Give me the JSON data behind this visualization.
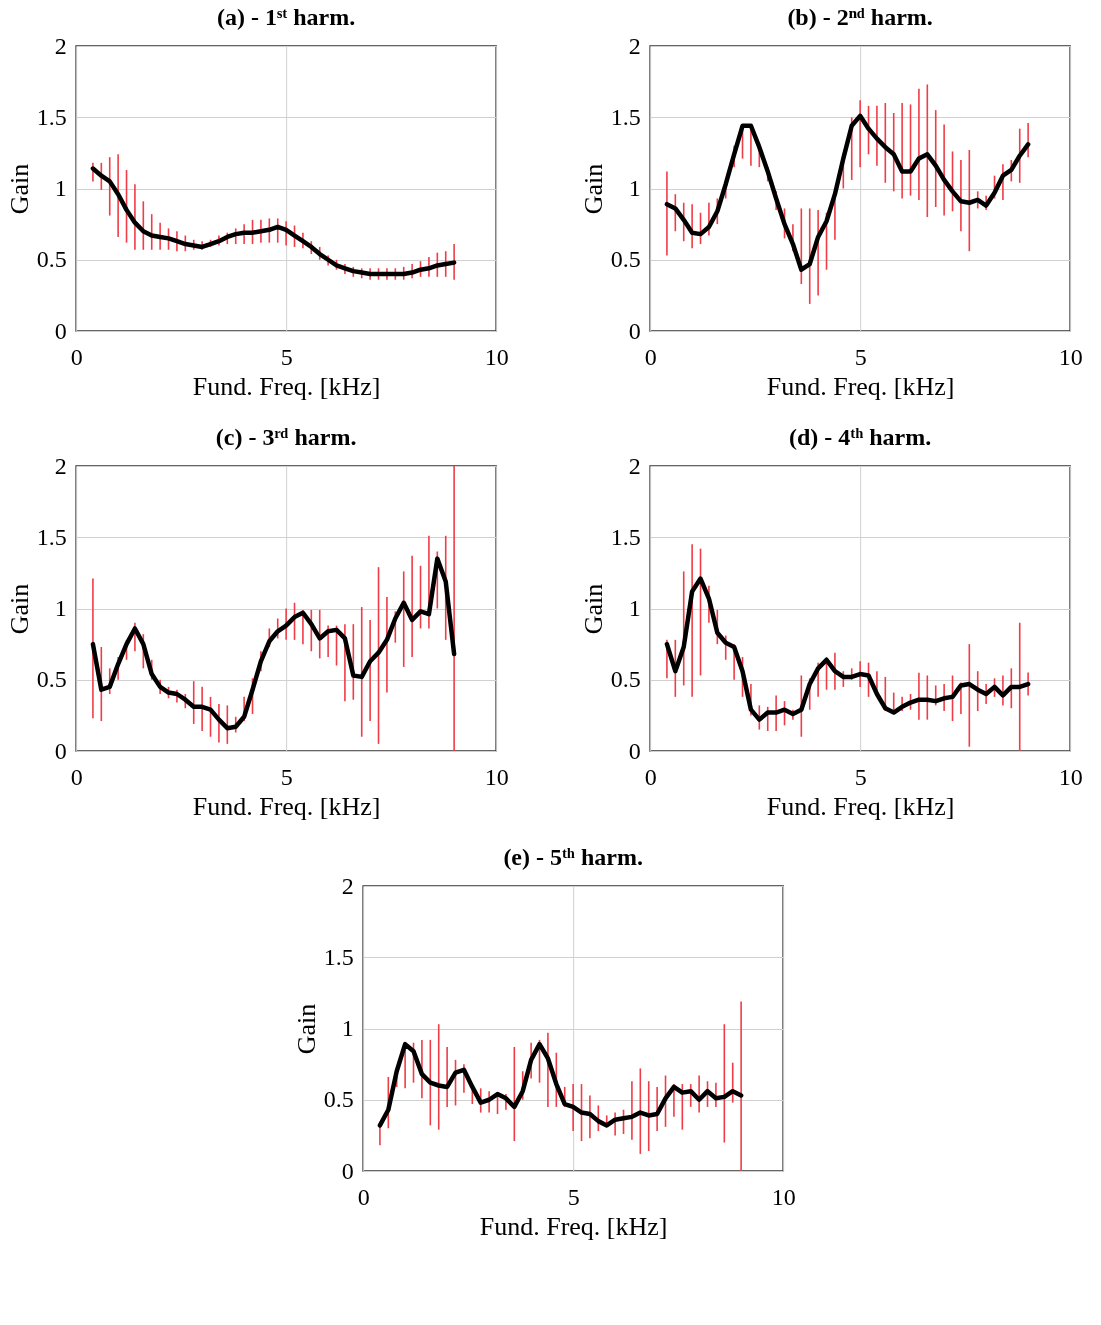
{
  "chart_data": [
    {
      "type": "line",
      "title": "(a) - 1ˢᵗ harm.",
      "xlabel": "Fund. Freq. [kHz]",
      "ylabel": "Gain",
      "color": "#000000",
      "grid": true,
      "xlim": [
        0,
        10
      ],
      "ylim": [
        0,
        2
      ],
      "xticks": [
        0,
        5,
        10
      ],
      "yticks": [
        0,
        0.5,
        1,
        1.5,
        2
      ],
      "x": [
        0.4,
        0.6,
        0.8,
        1.0,
        1.2,
        1.4,
        1.6,
        1.8,
        2.0,
        2.2,
        2.4,
        2.6,
        2.8,
        3.0,
        3.2,
        3.4,
        3.6,
        3.8,
        4.0,
        4.2,
        4.4,
        4.6,
        4.8,
        5.0,
        5.2,
        5.4,
        5.6,
        5.8,
        6.0,
        6.2,
        6.4,
        6.6,
        6.8,
        7.0,
        7.2,
        7.4,
        7.6,
        7.8,
        8.0,
        8.2,
        8.4,
        8.6,
        8.8,
        9.0
      ],
      "values": [
        1.14,
        1.09,
        1.05,
        0.96,
        0.85,
        0.76,
        0.7,
        0.67,
        0.66,
        0.65,
        0.63,
        0.61,
        0.6,
        0.59,
        0.61,
        0.63,
        0.66,
        0.68,
        0.69,
        0.69,
        0.7,
        0.71,
        0.73,
        0.71,
        0.67,
        0.63,
        0.59,
        0.54,
        0.5,
        0.46,
        0.44,
        0.42,
        0.41,
        0.4,
        0.4,
        0.4,
        0.4,
        0.4,
        0.41,
        0.43,
        0.44,
        0.46,
        0.47,
        0.48
      ],
      "errors": [
        [
          1.05,
          1.18
        ],
        [
          0.99,
          1.18
        ],
        [
          0.81,
          1.22
        ],
        [
          0.66,
          1.24
        ],
        [
          0.62,
          1.13
        ],
        [
          0.57,
          1.03
        ],
        [
          0.57,
          0.91
        ],
        [
          0.57,
          0.82
        ],
        [
          0.57,
          0.76
        ],
        [
          0.57,
          0.72
        ],
        [
          0.56,
          0.7
        ],
        [
          0.56,
          0.67
        ],
        [
          0.57,
          0.64
        ],
        [
          0.57,
          0.63
        ],
        [
          0.59,
          0.64
        ],
        [
          0.6,
          0.67
        ],
        [
          0.61,
          0.69
        ],
        [
          0.61,
          0.72
        ],
        [
          0.61,
          0.75
        ],
        [
          0.61,
          0.78
        ],
        [
          0.62,
          0.78
        ],
        [
          0.62,
          0.79
        ],
        [
          0.62,
          0.79
        ],
        [
          0.6,
          0.77
        ],
        [
          0.59,
          0.74
        ],
        [
          0.58,
          0.69
        ],
        [
          0.54,
          0.63
        ],
        [
          0.5,
          0.59
        ],
        [
          0.46,
          0.53
        ],
        [
          0.43,
          0.5
        ],
        [
          0.4,
          0.47
        ],
        [
          0.38,
          0.45
        ],
        [
          0.37,
          0.44
        ],
        [
          0.36,
          0.44
        ],
        [
          0.36,
          0.44
        ],
        [
          0.36,
          0.44
        ],
        [
          0.36,
          0.44
        ],
        [
          0.36,
          0.45
        ],
        [
          0.37,
          0.47
        ],
        [
          0.38,
          0.49
        ],
        [
          0.38,
          0.52
        ],
        [
          0.38,
          0.55
        ],
        [
          0.38,
          0.56
        ],
        [
          0.36,
          0.61
        ]
      ]
    },
    {
      "type": "line",
      "title": "(b) - 2ⁿᵈ harm.",
      "xlabel": "Fund. Freq. [kHz]",
      "ylabel": "Gain",
      "color": "#000000",
      "grid": true,
      "xlim": [
        0,
        10
      ],
      "ylim": [
        0,
        2
      ],
      "xticks": [
        0,
        5,
        10
      ],
      "yticks": [
        0,
        0.5,
        1,
        1.5,
        2
      ],
      "x": [
        0.4,
        0.6,
        0.8,
        1.0,
        1.2,
        1.4,
        1.6,
        1.8,
        2.0,
        2.2,
        2.4,
        2.6,
        2.8,
        3.0,
        3.2,
        3.4,
        3.6,
        3.8,
        4.0,
        4.2,
        4.4,
        4.6,
        4.8,
        5.0,
        5.2,
        5.4,
        5.6,
        5.8,
        6.0,
        6.2,
        6.4,
        6.6,
        6.8,
        7.0,
        7.2,
        7.4,
        7.6,
        7.8,
        8.0,
        8.2,
        8.4,
        8.6,
        8.8,
        9.0
      ],
      "values": [
        0.89,
        0.86,
        0.78,
        0.69,
        0.68,
        0.73,
        0.84,
        1.03,
        1.24,
        1.44,
        1.44,
        1.29,
        1.12,
        0.93,
        0.75,
        0.61,
        0.43,
        0.47,
        0.66,
        0.77,
        0.96,
        1.21,
        1.44,
        1.51,
        1.42,
        1.35,
        1.29,
        1.24,
        1.12,
        1.12,
        1.21,
        1.24,
        1.16,
        1.06,
        0.98,
        0.91,
        0.9,
        0.92,
        0.88,
        0.97,
        1.09,
        1.13,
        1.23,
        1.31
      ],
      "errors": [
        [
          0.53,
          1.12
        ],
        [
          0.7,
          0.96
        ],
        [
          0.63,
          0.9
        ],
        [
          0.58,
          0.89
        ],
        [
          0.61,
          0.83
        ],
        [
          0.67,
          0.9
        ],
        [
          0.75,
          0.93
        ],
        [
          0.93,
          1.05
        ],
        [
          1.15,
          1.3
        ],
        [
          1.21,
          1.45
        ],
        [
          1.16,
          1.45
        ],
        [
          1.15,
          1.32
        ],
        [
          1.05,
          1.15
        ],
        [
          0.85,
          0.98
        ],
        [
          0.65,
          0.86
        ],
        [
          0.56,
          0.75
        ],
        [
          0.33,
          0.86
        ],
        [
          0.19,
          0.86
        ],
        [
          0.25,
          0.85
        ],
        [
          0.43,
          0.83
        ],
        [
          0.64,
          0.97
        ],
        [
          1.0,
          1.25
        ],
        [
          1.06,
          1.5
        ],
        [
          1.15,
          1.62
        ],
        [
          1.24,
          1.58
        ],
        [
          1.16,
          1.58
        ],
        [
          1.04,
          1.6
        ],
        [
          0.98,
          1.53
        ],
        [
          0.93,
          1.6
        ],
        [
          0.95,
          1.59
        ],
        [
          0.92,
          1.7
        ],
        [
          0.8,
          1.73
        ],
        [
          0.87,
          1.55
        ],
        [
          0.81,
          1.45
        ],
        [
          0.84,
          1.26
        ],
        [
          0.7,
          1.2
        ],
        [
          0.56,
          1.27
        ],
        [
          0.86,
          0.98
        ],
        [
          0.85,
          0.95
        ],
        [
          0.93,
          1.09
        ],
        [
          0.92,
          1.17
        ],
        [
          1.05,
          1.2
        ],
        [
          1.04,
          1.42
        ],
        [
          1.22,
          1.46
        ]
      ]
    },
    {
      "type": "line",
      "title": "(c) - 3ʳᵈ harm.",
      "xlabel": "Fund. Freq. [kHz]",
      "ylabel": "Gain",
      "color": "#000000",
      "grid": true,
      "xlim": [
        0,
        10
      ],
      "ylim": [
        0,
        2
      ],
      "xticks": [
        0,
        5,
        10
      ],
      "yticks": [
        0,
        0.5,
        1,
        1.5,
        2
      ],
      "x": [
        0.4,
        0.6,
        0.8,
        1.0,
        1.2,
        1.4,
        1.6,
        1.8,
        2.0,
        2.2,
        2.4,
        2.6,
        2.8,
        3.0,
        3.2,
        3.4,
        3.6,
        3.8,
        4.0,
        4.2,
        4.4,
        4.6,
        4.8,
        5.0,
        5.2,
        5.4,
        5.6,
        5.8,
        6.0,
        6.2,
        6.4,
        6.6,
        6.8,
        7.0,
        7.2,
        7.4,
        7.6,
        7.8,
        8.0,
        8.2,
        8.4,
        8.6,
        8.8,
        9.0
      ],
      "values": [
        0.75,
        0.43,
        0.45,
        0.61,
        0.75,
        0.86,
        0.75,
        0.54,
        0.45,
        0.41,
        0.4,
        0.36,
        0.31,
        0.31,
        0.29,
        0.22,
        0.16,
        0.17,
        0.24,
        0.43,
        0.63,
        0.77,
        0.84,
        0.88,
        0.94,
        0.97,
        0.89,
        0.79,
        0.84,
        0.85,
        0.79,
        0.53,
        0.52,
        0.63,
        0.69,
        0.78,
        0.93,
        1.04,
        0.92,
        0.98,
        0.96,
        1.35,
        1.19,
        0.68
      ],
      "errors": [
        [
          0.23,
          1.21
        ],
        [
          0.21,
          0.73
        ],
        [
          0.4,
          0.58
        ],
        [
          0.5,
          0.66
        ],
        [
          0.64,
          0.78
        ],
        [
          0.7,
          0.9
        ],
        [
          0.58,
          0.82
        ],
        [
          0.5,
          0.64
        ],
        [
          0.4,
          0.5
        ],
        [
          0.37,
          0.45
        ],
        [
          0.34,
          0.43
        ],
        [
          0.3,
          0.4
        ],
        [
          0.19,
          0.49
        ],
        [
          0.14,
          0.45
        ],
        [
          0.1,
          0.38
        ],
        [
          0.06,
          0.33
        ],
        [
          0.05,
          0.32
        ],
        [
          0.13,
          0.24
        ],
        [
          0.21,
          0.38
        ],
        [
          0.26,
          0.51
        ],
        [
          0.56,
          0.7
        ],
        [
          0.73,
          0.86
        ],
        [
          0.79,
          0.93
        ],
        [
          0.78,
          1.0
        ],
        [
          0.78,
          1.04
        ],
        [
          0.75,
          0.99
        ],
        [
          0.7,
          0.99
        ],
        [
          0.65,
          0.99
        ],
        [
          0.66,
          0.88
        ],
        [
          0.6,
          0.88
        ],
        [
          0.35,
          0.89
        ],
        [
          0.36,
          0.89
        ],
        [
          0.1,
          1.01
        ],
        [
          0.21,
          0.92
        ],
        [
          0.05,
          1.29
        ],
        [
          0.41,
          1.08
        ],
        [
          0.76,
          0.98
        ],
        [
          0.59,
          1.26
        ],
        [
          0.66,
          1.37
        ],
        [
          0.86,
          1.3
        ],
        [
          0.86,
          1.51
        ],
        [
          1.0,
          1.4
        ],
        [
          0.78,
          1.51
        ],
        [
          0,
          2.0
        ]
      ]
    },
    {
      "type": "line",
      "title": "(d) - 4ᵗʰ harm.",
      "xlabel": "Fund. Freq. [kHz]",
      "ylabel": "Gain",
      "color": "#000000",
      "grid": true,
      "xlim": [
        0,
        10
      ],
      "ylim": [
        0,
        2
      ],
      "xticks": [
        0,
        5,
        10
      ],
      "yticks": [
        0,
        0.5,
        1,
        1.5,
        2
      ],
      "x": [
        0.4,
        0.6,
        0.8,
        1.0,
        1.2,
        1.4,
        1.6,
        1.8,
        2.0,
        2.2,
        2.4,
        2.6,
        2.8,
        3.0,
        3.2,
        3.4,
        3.6,
        3.8,
        4.0,
        4.2,
        4.4,
        4.6,
        4.8,
        5.0,
        5.2,
        5.4,
        5.6,
        5.8,
        6.0,
        6.2,
        6.4,
        6.6,
        6.8,
        7.0,
        7.2,
        7.4,
        7.6,
        7.8,
        8.0,
        8.2,
        8.4,
        8.6,
        8.8,
        9.0
      ],
      "values": [
        0.75,
        0.56,
        0.73,
        1.12,
        1.21,
        1.07,
        0.83,
        0.76,
        0.73,
        0.56,
        0.29,
        0.22,
        0.27,
        0.27,
        0.29,
        0.26,
        0.29,
        0.47,
        0.58,
        0.64,
        0.56,
        0.52,
        0.52,
        0.54,
        0.53,
        0.4,
        0.3,
        0.27,
        0.31,
        0.34,
        0.36,
        0.36,
        0.35,
        0.37,
        0.38,
        0.46,
        0.47,
        0.43,
        0.4,
        0.45,
        0.39,
        0.45,
        0.45,
        0.47
      ],
      "errors": [
        [
          0.51,
          0.78
        ],
        [
          0.38,
          0.78
        ],
        [
          0.46,
          1.26
        ],
        [
          0.38,
          1.45
        ],
        [
          0.53,
          1.42
        ],
        [
          0.9,
          1.16
        ],
        [
          0.75,
          0.99
        ],
        [
          0.64,
          0.81
        ],
        [
          0.5,
          0.75
        ],
        [
          0.38,
          0.66
        ],
        [
          0.25,
          0.47
        ],
        [
          0.15,
          0.32
        ],
        [
          0.14,
          0.31
        ],
        [
          0.14,
          0.39
        ],
        [
          0.18,
          0.35
        ],
        [
          0.22,
          0.29
        ],
        [
          0.1,
          0.53
        ],
        [
          0.29,
          0.51
        ],
        [
          0.38,
          0.62
        ],
        [
          0.43,
          0.66
        ],
        [
          0.43,
          0.69
        ],
        [
          0.45,
          0.56
        ],
        [
          0.5,
          0.58
        ],
        [
          0.45,
          0.63
        ],
        [
          0.38,
          0.62
        ],
        [
          0.38,
          0.56
        ],
        [
          0.28,
          0.52
        ],
        [
          0.26,
          0.41
        ],
        [
          0.28,
          0.38
        ],
        [
          0.29,
          0.4
        ],
        [
          0.22,
          0.55
        ],
        [
          0.22,
          0.53
        ],
        [
          0.32,
          0.46
        ],
        [
          0.28,
          0.47
        ],
        [
          0.21,
          0.53
        ],
        [
          0.26,
          0.48
        ],
        [
          0.03,
          0.75
        ],
        [
          0.28,
          0.56
        ],
        [
          0.33,
          0.47
        ],
        [
          0.38,
          0.51
        ],
        [
          0.32,
          0.53
        ],
        [
          0.3,
          0.58
        ],
        [
          0,
          0.9
        ],
        [
          0.39,
          0.55
        ]
      ]
    },
    {
      "type": "line",
      "title": "(e) - 5ᵗʰ harm.",
      "xlabel": "Fund. Freq. [kHz]",
      "ylabel": "Gain",
      "color": "#000000",
      "grid": true,
      "xlim": [
        0,
        10
      ],
      "ylim": [
        0,
        2
      ],
      "xticks": [
        0,
        5,
        10
      ],
      "yticks": [
        0,
        0.5,
        1,
        1.5,
        2
      ],
      "x": [
        0.4,
        0.6,
        0.8,
        1.0,
        1.2,
        1.4,
        1.6,
        1.8,
        2.0,
        2.2,
        2.4,
        2.6,
        2.8,
        3.0,
        3.2,
        3.4,
        3.6,
        3.8,
        4.0,
        4.2,
        4.4,
        4.6,
        4.8,
        5.0,
        5.2,
        5.4,
        5.6,
        5.8,
        6.0,
        6.2,
        6.4,
        6.6,
        6.8,
        7.0,
        7.2,
        7.4,
        7.6,
        7.8,
        8.0,
        8.2,
        8.4,
        8.6,
        8.8,
        9.0
      ],
      "values": [
        0.32,
        0.43,
        0.7,
        0.89,
        0.84,
        0.68,
        0.62,
        0.6,
        0.59,
        0.69,
        0.71,
        0.59,
        0.48,
        0.5,
        0.54,
        0.51,
        0.45,
        0.56,
        0.78,
        0.89,
        0.79,
        0.61,
        0.47,
        0.45,
        0.41,
        0.4,
        0.35,
        0.32,
        0.36,
        0.37,
        0.38,
        0.41,
        0.39,
        0.4,
        0.51,
        0.59,
        0.55,
        0.56,
        0.5,
        0.56,
        0.51,
        0.52,
        0.56,
        0.53
      ],
      "errors": [
        [
          0.18,
          0.34
        ],
        [
          0.3,
          0.66
        ],
        [
          0.59,
          0.72
        ],
        [
          0.58,
          0.9
        ],
        [
          0.62,
          0.9
        ],
        [
          0.51,
          0.92
        ],
        [
          0.32,
          0.92
        ],
        [
          0.29,
          1.03
        ],
        [
          0.45,
          0.87
        ],
        [
          0.46,
          0.78
        ],
        [
          0.55,
          0.75
        ],
        [
          0.47,
          0.61
        ],
        [
          0.41,
          0.58
        ],
        [
          0.41,
          0.56
        ],
        [
          0.4,
          0.55
        ],
        [
          0.43,
          0.54
        ],
        [
          0.21,
          0.87
        ],
        [
          0.5,
          0.7
        ],
        [
          0.65,
          0.9
        ],
        [
          0.62,
          0.92
        ],
        [
          0.45,
          0.97
        ],
        [
          0.45,
          0.83
        ],
        [
          0.45,
          0.59
        ],
        [
          0.28,
          0.61
        ],
        [
          0.21,
          0.61
        ],
        [
          0.23,
          0.53
        ],
        [
          0.28,
          0.46
        ],
        [
          0.31,
          0.39
        ],
        [
          0.25,
          0.41
        ],
        [
          0.26,
          0.43
        ],
        [
          0.22,
          0.63
        ],
        [
          0.12,
          0.72
        ],
        [
          0.14,
          0.63
        ],
        [
          0.28,
          0.59
        ],
        [
          0.31,
          0.67
        ],
        [
          0.38,
          0.61
        ],
        [
          0.29,
          0.61
        ],
        [
          0.45,
          0.61
        ],
        [
          0.41,
          0.67
        ],
        [
          0.45,
          0.63
        ],
        [
          0.45,
          0.62
        ],
        [
          0.2,
          1.03
        ],
        [
          0.48,
          0.76
        ],
        [
          0,
          1.19
        ]
      ]
    }
  ]
}
